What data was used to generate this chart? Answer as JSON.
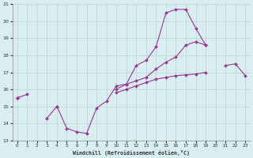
{
  "xlabel": "Windchill (Refroidissement éolien,°C)",
  "xlim": [
    -0.5,
    23.5
  ],
  "ylim": [
    13,
    21
  ],
  "yticks": [
    13,
    14,
    15,
    16,
    17,
    18,
    19,
    20,
    21
  ],
  "xticks": [
    0,
    1,
    2,
    3,
    4,
    5,
    6,
    7,
    8,
    9,
    10,
    11,
    12,
    13,
    14,
    15,
    16,
    17,
    18,
    19,
    20,
    21,
    22,
    23
  ],
  "bg_color": "#d8eef0",
  "grid_color": "#b8d4d8",
  "line_color": "#993399",
  "line1_y": [
    15.5,
    15.7,
    null,
    14.3,
    15.0,
    13.7,
    13.5,
    13.4,
    14.9,
    15.3,
    16.2,
    16.3,
    17.4,
    17.7,
    18.5,
    20.5,
    20.7,
    20.7,
    19.6,
    18.6,
    null,
    null,
    null,
    null
  ],
  "line2_y": [
    15.5,
    null,
    null,
    null,
    15.0,
    null,
    null,
    null,
    null,
    null,
    16.0,
    16.3,
    16.5,
    16.7,
    17.2,
    17.6,
    17.9,
    18.6,
    18.8,
    18.6,
    null,
    null,
    null,
    null
  ],
  "line3_y": [
    15.5,
    null,
    null,
    null,
    null,
    null,
    null,
    null,
    null,
    null,
    15.8,
    16.0,
    16.2,
    16.4,
    16.6,
    16.7,
    16.8,
    16.85,
    16.9,
    17.0,
    null,
    17.4,
    17.5,
    16.8
  ]
}
